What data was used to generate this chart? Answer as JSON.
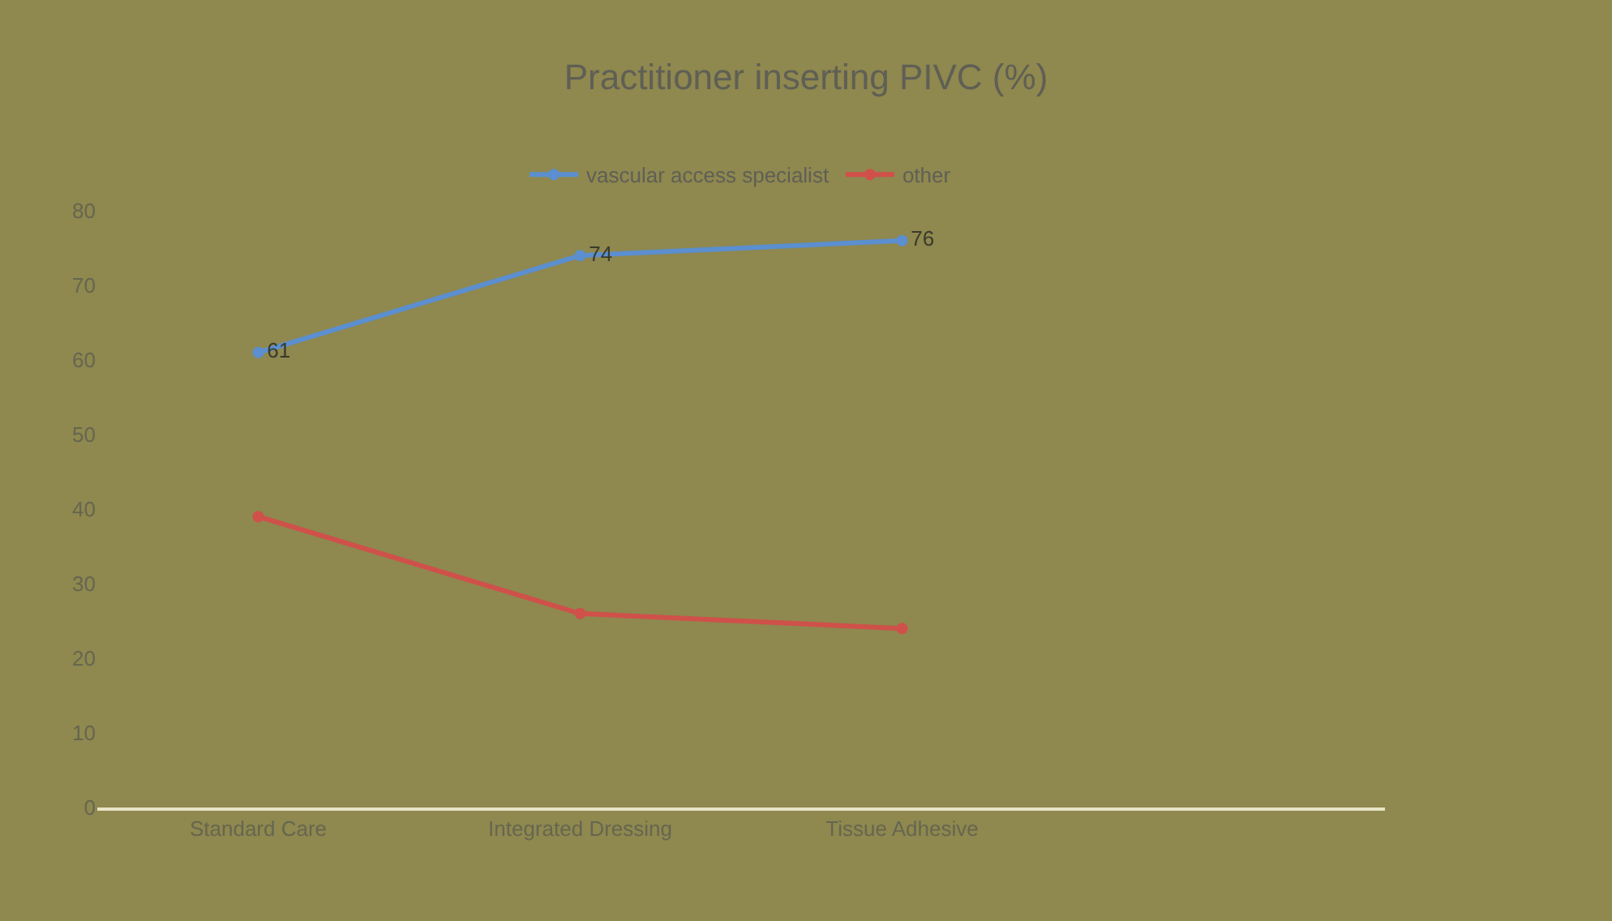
{
  "chart_data": {
    "type": "line",
    "title": "Practitioner inserting PIVC (%)",
    "categories": [
      "Standard Care",
      "Integrated Dressing",
      "Tissue Adhesive",
      null
    ],
    "series": [
      {
        "name": "vascular access specialist",
        "color": "#5b8fd0",
        "values": [
          61,
          74,
          76,
          null
        ],
        "value_labels": [
          "61",
          "74",
          "76",
          null
        ]
      },
      {
        "name": "other",
        "color": "#d0504a",
        "values": [
          39,
          26,
          24,
          null
        ]
      }
    ],
    "ylim": [
      0,
      80
    ],
    "yticks": [
      0,
      10,
      20,
      30,
      40,
      50,
      60,
      70,
      80
    ],
    "grid": false,
    "legend": "top",
    "marker": "circle",
    "line_style": "solid"
  }
}
